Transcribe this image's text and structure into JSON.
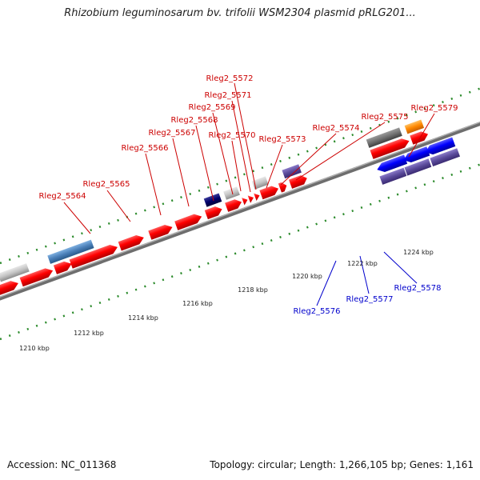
{
  "title": "Rhizobium leguminosarum bv. trifolii WSM2304 plasmid pRLG201...",
  "footer": {
    "accession_label": "Accession:",
    "accession": "NC_011368",
    "topology_label": "Topology:",
    "topology": "circular",
    "length_label": "Length:",
    "length": "1,266,105 bp",
    "genes_label": "Genes:",
    "genes": "1,161"
  },
  "colors": {
    "forward_cds": "#ff0000",
    "reverse_cds": "#0000ff",
    "forward_label": "#cc0000",
    "reverse_label": "#0000cc",
    "tick": "#2a8a2a",
    "backbone": "#808080",
    "grey_feature": "#c0c0c0",
    "dark_grey_feature": "#707070",
    "steel_blue_feature": "#4a7fb8",
    "navy_feature": "#000060",
    "slate_feature": "#5a4a9a",
    "orange_feature": "#ff8800"
  },
  "scale_labels": [
    "1210 kbp",
    "1212 kbp",
    "1214 kbp",
    "1216 kbp",
    "1218 kbp",
    "1220 kbp",
    "1222 kbp",
    "1224 kbp"
  ],
  "forward_genes": [
    "Rleg2_5564",
    "Rleg2_5565",
    "Rleg2_5566",
    "Rleg2_5567",
    "Rleg2_5568",
    "Rleg2_5569",
    "Rleg2_5570",
    "Rleg2_5571",
    "Rleg2_5572",
    "Rleg2_5573",
    "Rleg2_5574",
    "Rleg2_5575",
    "Rleg2_5579"
  ],
  "reverse_genes": [
    "Rleg2_5576",
    "Rleg2_5577",
    "Rleg2_5578"
  ]
}
